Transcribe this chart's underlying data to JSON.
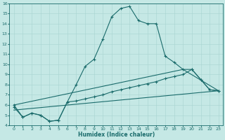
{
  "xlabel": "Humidex (Indice chaleur)",
  "xlim": [
    -0.5,
    23.5
  ],
  "ylim": [
    4,
    16
  ],
  "xticks": [
    0,
    1,
    2,
    3,
    4,
    5,
    6,
    7,
    8,
    9,
    10,
    11,
    12,
    13,
    14,
    15,
    16,
    17,
    18,
    19,
    20,
    21,
    22,
    23
  ],
  "yticks": [
    4,
    5,
    6,
    7,
    8,
    9,
    10,
    11,
    12,
    13,
    14,
    15,
    16
  ],
  "bg_color": "#c5e8e5",
  "line_color": "#1a6b6b",
  "grid_color": "#a8d4d0",
  "line1_x": [
    0,
    1,
    2,
    3,
    4,
    5,
    6,
    7,
    8,
    9,
    10,
    11,
    12,
    13,
    14,
    15,
    16,
    17,
    18,
    19,
    20,
    21,
    22,
    23
  ],
  "line1_y": [
    6.0,
    4.8,
    5.2,
    5.0,
    4.4,
    4.5,
    6.3,
    8.0,
    9.8,
    10.5,
    12.5,
    14.7,
    15.5,
    15.7,
    14.3,
    14.0,
    14.0,
    10.8,
    10.2,
    9.5,
    9.5,
    8.5,
    7.5,
    7.4
  ],
  "line2_x": [
    0,
    1,
    2,
    3,
    4,
    5,
    6,
    7,
    8,
    9,
    10,
    11,
    12,
    13,
    14,
    15,
    16,
    17,
    18,
    19,
    20,
    21,
    22,
    23
  ],
  "line2_y": [
    5.8,
    4.8,
    5.2,
    5.0,
    4.4,
    4.5,
    6.3,
    6.4,
    6.6,
    6.8,
    7.0,
    7.3,
    7.5,
    7.7,
    7.9,
    8.1,
    8.3,
    8.6,
    8.8,
    9.0,
    9.5,
    8.5,
    7.5,
    7.4
  ],
  "line3_x": [
    0,
    19,
    23
  ],
  "line3_y": [
    6.0,
    9.5,
    7.4
  ],
  "line4_x": [
    0,
    23
  ],
  "line4_y": [
    5.5,
    7.4
  ]
}
